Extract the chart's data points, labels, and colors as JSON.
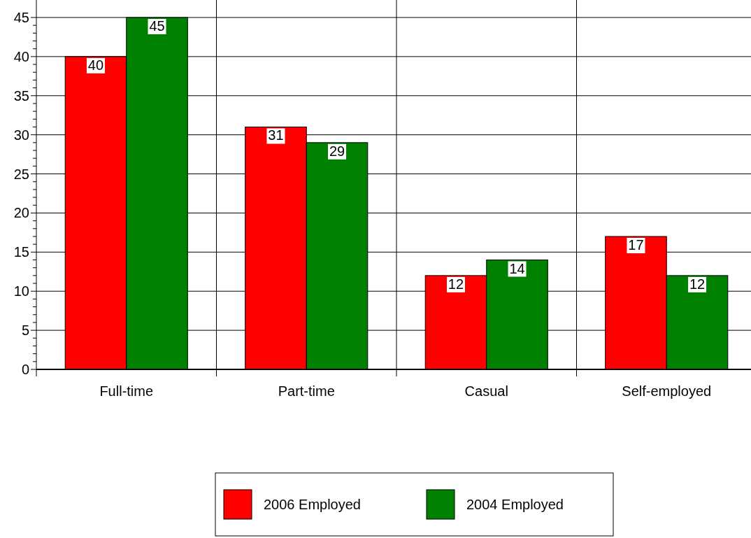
{
  "chart_data": {
    "type": "bar",
    "categories": [
      "Full-time",
      "Part-time",
      "Casual",
      "Self-employed"
    ],
    "series": [
      {
        "name": "2006 Employed",
        "color": "#ff0000",
        "values": [
          40,
          31,
          12,
          17
        ]
      },
      {
        "name": "2004 Employed",
        "color": "#008000",
        "values": [
          45,
          29,
          14,
          12
        ]
      }
    ],
    "ylim": [
      0,
      45
    ],
    "yticks": [
      0,
      {
        "value": 1,
        "label": null
      },
      {
        "value": 2,
        "label": null
      },
      {
        "value": 3,
        "label": null
      },
      {
        "value": 4,
        "label": null
      },
      5,
      {
        "value": 6,
        "label": null
      },
      {
        "value": 7,
        "label": null
      },
      {
        "value": 8,
        "label": null
      },
      {
        "value": 9,
        "label": null
      },
      10,
      {
        "value": 11,
        "label": null
      },
      {
        "value": 12,
        "label": null
      },
      {
        "value": 13,
        "label": null
      },
      {
        "value": 14,
        "label": null
      },
      15,
      {
        "value": 16,
        "label": null
      },
      {
        "value": 17,
        "label": null
      },
      {
        "value": 18,
        "label": null
      },
      {
        "value": 19,
        "label": null
      },
      20,
      {
        "value": 21,
        "label": null
      },
      {
        "value": 22,
        "label": null
      },
      {
        "value": 23,
        "label": null
      },
      {
        "value": 24,
        "label": null
      },
      25,
      {
        "value": 26,
        "label": null
      },
      {
        "value": 27,
        "label": null
      },
      {
        "value": 28,
        "label": null
      },
      {
        "value": 29,
        "label": null
      },
      30,
      {
        "value": 31,
        "label": null
      },
      {
        "value": 32,
        "label": null
      },
      {
        "value": 33,
        "label": null
      },
      {
        "value": 34,
        "label": null
      },
      35,
      {
        "value": 36,
        "label": null
      },
      {
        "value": 37,
        "label": null
      },
      {
        "value": 38,
        "label": null
      },
      {
        "value": 39,
        "label": null
      },
      40,
      {
        "value": 41,
        "label": null
      },
      {
        "value": 42,
        "label": null
      },
      {
        "value": 43,
        "label": null
      },
      {
        "value": 44,
        "label": null
      },
      45
    ],
    "grid": true,
    "data_labels": true,
    "legend": "bottom"
  }
}
